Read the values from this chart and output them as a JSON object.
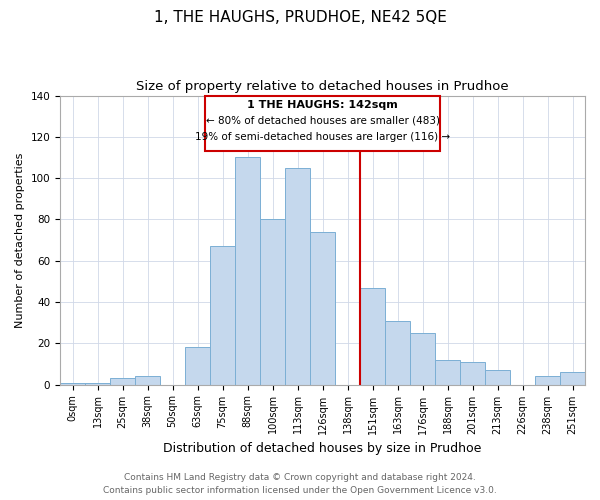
{
  "title": "1, THE HAUGHS, PRUDHOE, NE42 5QE",
  "subtitle": "Size of property relative to detached houses in Prudhoe",
  "xlabel": "Distribution of detached houses by size in Prudhoe",
  "ylabel": "Number of detached properties",
  "bar_labels": [
    "0sqm",
    "13sqm",
    "25sqm",
    "38sqm",
    "50sqm",
    "63sqm",
    "75sqm",
    "88sqm",
    "100sqm",
    "113sqm",
    "126sqm",
    "138sqm",
    "151sqm",
    "163sqm",
    "176sqm",
    "188sqm",
    "201sqm",
    "213sqm",
    "226sqm",
    "238sqm",
    "251sqm"
  ],
  "bar_values": [
    1,
    1,
    3,
    4,
    0,
    18,
    67,
    110,
    80,
    105,
    74,
    0,
    47,
    31,
    25,
    12,
    11,
    7,
    0,
    4,
    6
  ],
  "bar_color": "#c5d8ed",
  "bar_edge_color": "#7bafd4",
  "annotation_line_color": "#cc0000",
  "annotation_box_title": "1 THE HAUGHS: 142sqm",
  "annotation_line1": "← 80% of detached houses are smaller (483)",
  "annotation_line2": "19% of semi-detached houses are larger (116) →",
  "annotation_box_color": "#ffffff",
  "annotation_box_edge_color": "#cc0000",
  "footer_line1": "Contains HM Land Registry data © Crown copyright and database right 2024.",
  "footer_line2": "Contains public sector information licensed under the Open Government Licence v3.0.",
  "ylim": [
    0,
    140
  ],
  "title_fontsize": 11,
  "subtitle_fontsize": 9.5,
  "xlabel_fontsize": 9,
  "ylabel_fontsize": 8,
  "tick_fontsize": 7,
  "footer_fontsize": 6.5
}
